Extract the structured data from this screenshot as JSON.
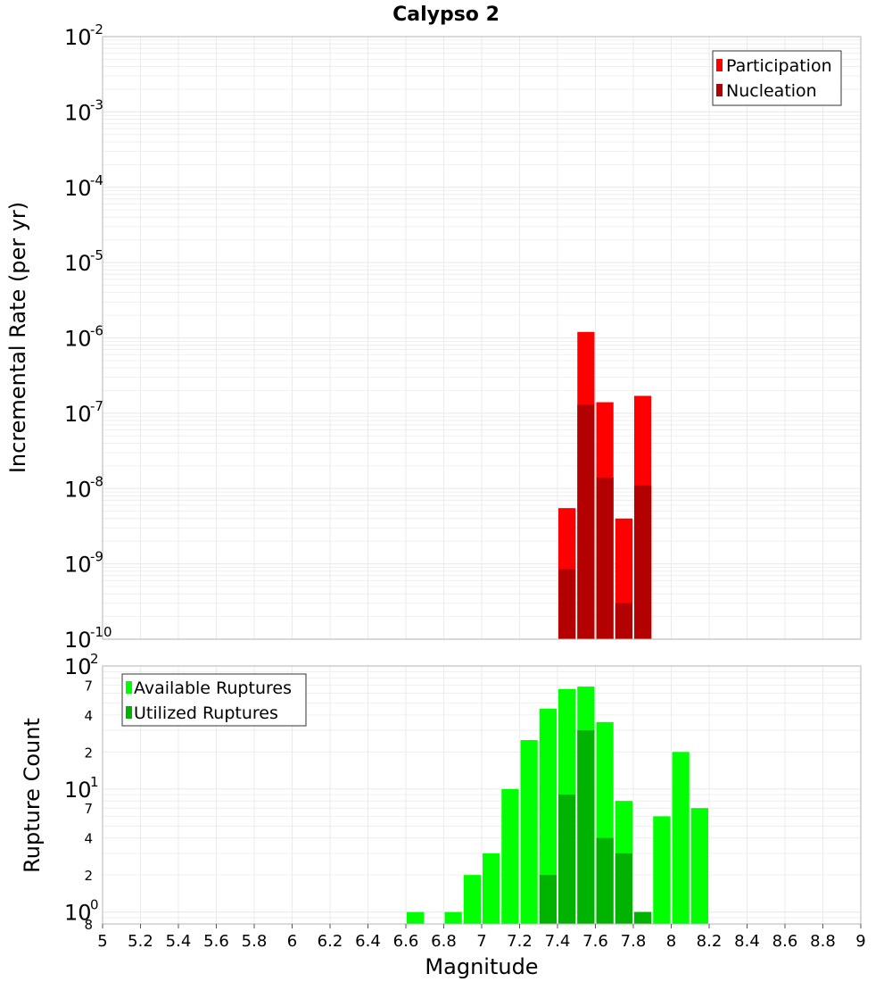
{
  "chart_data": [
    {
      "type": "bar",
      "title": "Calypso 2",
      "xlabel": "Magnitude",
      "ylabel": "Incremental Rate (per yr)",
      "y_scale": "log",
      "ylim": [
        1e-10,
        0.01
      ],
      "xlim": [
        5,
        9
      ],
      "legend_position": "top-right",
      "grid": true,
      "bar_width": 0.1,
      "series": [
        {
          "name": "Participation",
          "color": "#ff0000",
          "x": [
            7.45,
            7.55,
            7.65,
            7.75,
            7.85
          ],
          "values": [
            5.5e-09,
            1.2e-06,
            1.4e-07,
            4e-09,
            1.7e-07
          ]
        },
        {
          "name": "Nucleation",
          "color": "#b30000",
          "x": [
            7.45,
            7.55,
            7.65,
            7.75,
            7.85
          ],
          "values": [
            8.5e-10,
            1.3e-07,
            1.4e-08,
            3e-10,
            1.1e-08
          ]
        }
      ]
    },
    {
      "type": "bar",
      "xlabel": "Magnitude",
      "ylabel": "Rupture Count",
      "y_scale": "log",
      "ylim": [
        0.8,
        100
      ],
      "xlim": [
        5,
        9
      ],
      "legend_position": "top-left",
      "grid": true,
      "bar_width": 0.1,
      "series": [
        {
          "name": "Available Ruptures",
          "color": "#00ff00",
          "x": [
            6.65,
            6.85,
            6.95,
            7.05,
            7.15,
            7.25,
            7.35,
            7.45,
            7.55,
            7.65,
            7.75,
            7.85,
            7.95,
            8.05,
            8.15
          ],
          "values": [
            1,
            1,
            2,
            3,
            10,
            25,
            45,
            65,
            68,
            35,
            8,
            1,
            6,
            20,
            7
          ]
        },
        {
          "name": "Utilized Ruptures",
          "color": "#00b300",
          "x": [
            7.35,
            7.45,
            7.55,
            7.65,
            7.75,
            7.85
          ],
          "values": [
            2,
            9,
            30,
            4,
            3,
            1
          ]
        }
      ]
    }
  ],
  "axes": {
    "x_ticks": [
      "5",
      "5.2",
      "5.4",
      "5.6",
      "5.8",
      "6",
      "6.2",
      "6.4",
      "6.6",
      "6.8",
      "7",
      "7.2",
      "7.4",
      "7.6",
      "7.8",
      "8",
      "8.2",
      "8.4",
      "8.6",
      "8.8",
      "9"
    ],
    "top_y_exponents": [
      "-2",
      "-3",
      "-4",
      "-5",
      "-6",
      "-7",
      "-8",
      "-9",
      "-10"
    ],
    "bottom_y_major": [
      {
        "base": "10",
        "exp": "2"
      },
      {
        "base": "10",
        "exp": "1"
      },
      {
        "base": "10",
        "exp": "0"
      }
    ],
    "bottom_y_minor": [
      "7",
      "4",
      "2",
      "7",
      "4",
      "2",
      "8"
    ]
  }
}
